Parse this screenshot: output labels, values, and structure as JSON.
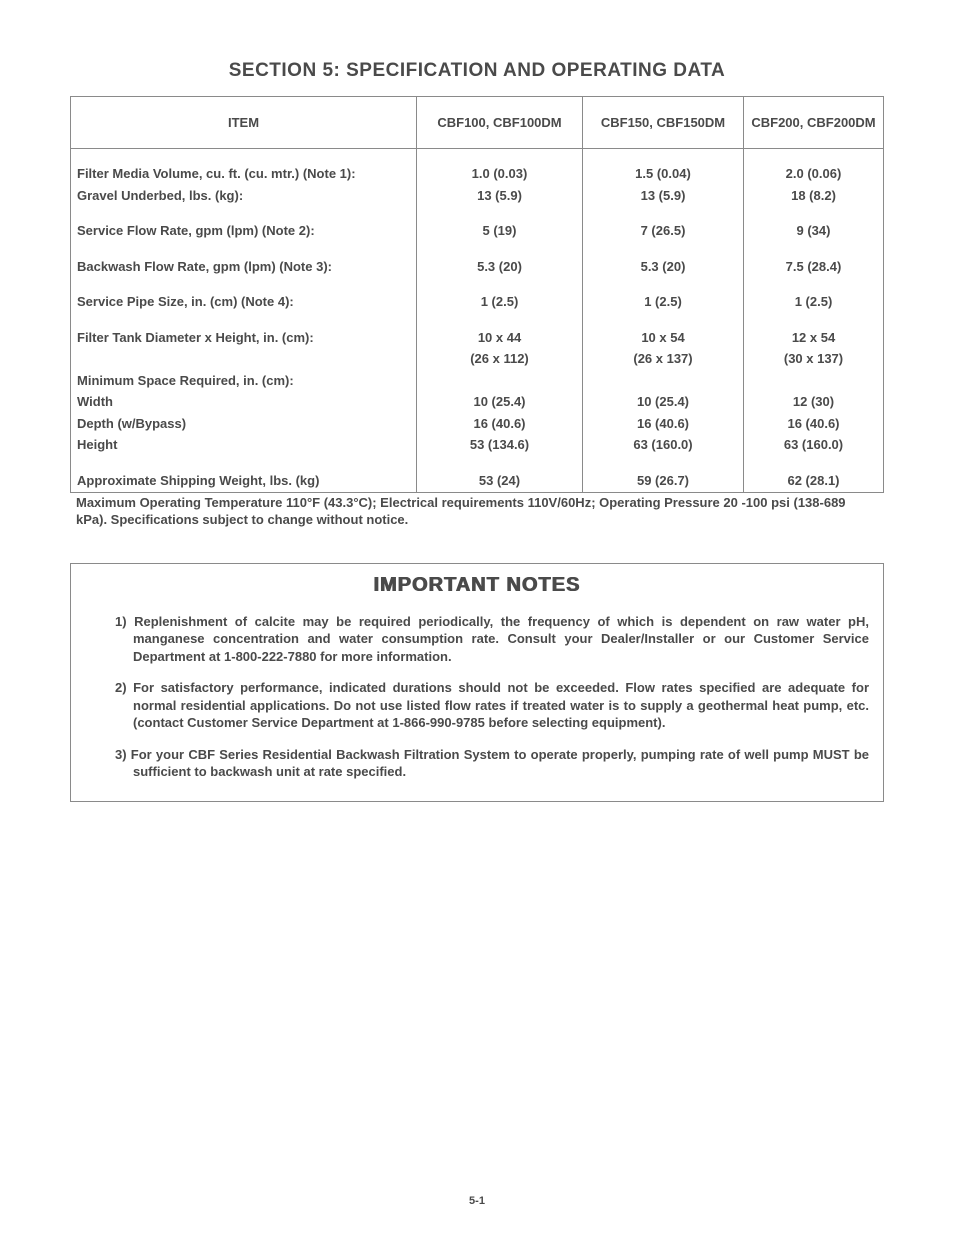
{
  "page": {
    "title": "SECTION 5: SPECIFICATION AND OPERATING DATA",
    "pageNumber": "5-1",
    "textColor": "#4a4a4a",
    "borderColor": "#8a8a8a",
    "backgroundColor": "#ffffff"
  },
  "table": {
    "headers": {
      "item": "ITEM",
      "colA": "CBF100, CBF100DM",
      "colB": "CBF150, CBF150DM",
      "colC": "CBF200, CBF200DM"
    },
    "rows": {
      "filterMediaLabel": "Filter Media Volume, cu. ft. (cu. mtr.) (Note 1):",
      "filterMediaA": "1.0 (0.03)",
      "filterMediaB": "1.5 (0.04)",
      "filterMediaC": "2.0 (0.06)",
      "gravelLabel": "Gravel Underbed, lbs. (kg):",
      "gravelA": "13 (5.9)",
      "gravelB": "13 (5.9)",
      "gravelC": "18 (8.2)",
      "serviceFlowLabel": "Service Flow Rate, gpm (lpm) (Note 2):",
      "serviceFlowA": "5 (19)",
      "serviceFlowB": "7 (26.5)",
      "serviceFlowC": "9 (34)",
      "backwashLabel": "Backwash Flow Rate, gpm (lpm) (Note 3):",
      "backwashA": "5.3 (20)",
      "backwashB": "5.3 (20)",
      "backwashC": "7.5 (28.4)",
      "pipeLabel": "Service Pipe Size, in. (cm) (Note 4):",
      "pipeA": "1 (2.5)",
      "pipeB": "1 (2.5)",
      "pipeC": "1 (2.5)",
      "tankLabel": "Filter Tank Diameter x Height, in. (cm):",
      "tankA1": "10 x 44",
      "tankA2": "(26 x 112)",
      "tankB1": "10 x 54",
      "tankB2": "(26 x 137)",
      "tankC1": "12 x 54",
      "tankC2": "(30 x 137)",
      "minSpaceLabel": "Minimum Space Required, in. (cm):",
      "widthLabel": "Width",
      "widthA": "10 (25.4)",
      "widthB": "10 (25.4)",
      "widthC": "12 (30)",
      "depthLabel": "Depth (w/Bypass)",
      "depthA": "16 (40.6)",
      "depthB": "16 (40.6)",
      "depthC": "16 (40.6)",
      "heightLabel": "Height",
      "heightA": "53 (134.6)",
      "heightB": "63 (160.0)",
      "heightC": "63 (160.0)",
      "shipLabel": "Approximate Shipping Weight, lbs. (kg)",
      "shipA": "53 (24)",
      "shipB": "59 (26.7)",
      "shipC": "62 (28.1)"
    },
    "footnote": "Maximum Operating Temperature 110°F (43.3°C); Electrical requirements 110V/60Hz; Operating Pressure 20 -100 psi (138-689 kPa). Specifications subject to change without notice."
  },
  "notes": {
    "title": "IMPORTANT NOTES",
    "n1": "1) Replenishment of calcite may be required periodically, the frequency of which is dependent on raw water pH, manganese concentration and water consumption rate. Consult your Dealer/Installer or our Customer Service Department at 1-800-222-7880 for more information.",
    "n2": "2) For satisfactory performance, indicated durations should not be exceeded. Flow rates specified are adequate for normal residential applications. Do not use listed flow rates if treated water is to supply a geothermal heat pump, etc. (contact Customer Service Department at 1-866-990-9785 before selecting equipment).",
    "n3": "3) For your CBF Series Residential Backwash Filtration System to operate properly, pumping rate of well pump MUST be sufficient to backwash unit at rate specified."
  }
}
